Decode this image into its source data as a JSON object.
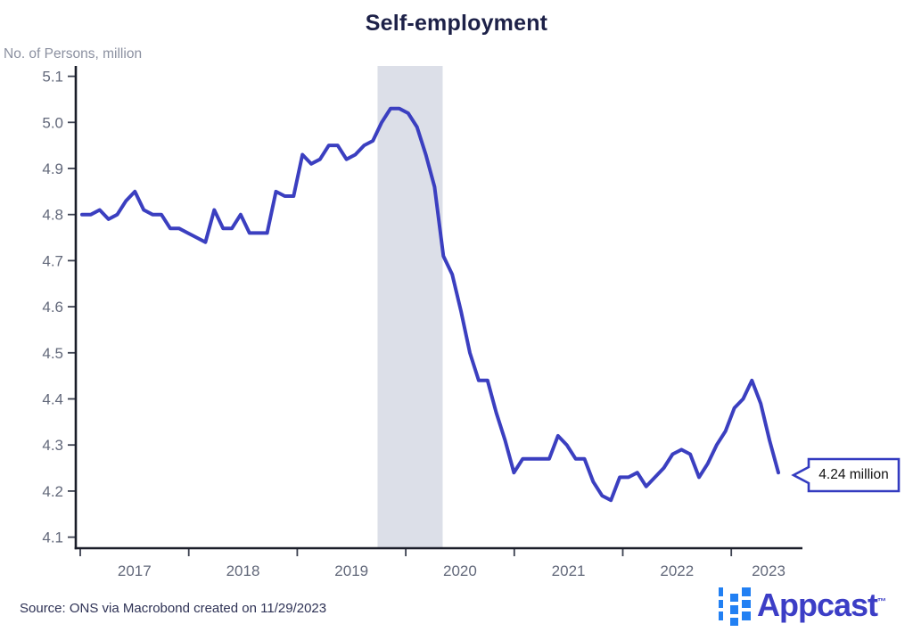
{
  "chart": {
    "title": "Self-employment",
    "ylabel": "No. of Persons, million",
    "callout_label": "4.24 million"
  },
  "footer": {
    "source": "Source: ONS via Macrobond created on 11/29/2023",
    "logo_text": "Appcast",
    "logo_tm": "™"
  },
  "colors": {
    "line": "#3b3fc0",
    "recession_band": "#dcdfe8",
    "axis": "#1a1d29",
    "tick": "#3c4150",
    "tick_label": "#62687a",
    "title": "#1d2148",
    "ylabel": "#8b90a0",
    "source_text": "#2e3255",
    "callout_border": "#333bc0",
    "logo_square_blue": "#2280f3",
    "logo_text_blue": "#3c3ec6"
  },
  "chart_data": {
    "type": "line",
    "title": "Self-employment",
    "ylabel": "No. of Persons, million",
    "unit": "million persons",
    "frequency": "monthly",
    "x_start": "2017-01",
    "x_end": "2023-08",
    "xticks": [
      2017,
      2018,
      2019,
      2020,
      2021,
      2022,
      2023
    ],
    "yticks": [
      5.1,
      5.0,
      4.9,
      4.8,
      4.7,
      4.6,
      4.5,
      4.4,
      4.3,
      4.2,
      4.1
    ],
    "ylim": [
      4.05,
      5.125
    ],
    "grid": false,
    "legend": false,
    "recession_band": {
      "from": 2019.74,
      "to": 2020.34
    },
    "last_value_label": "4.24 million",
    "series": [
      {
        "name": "Self-employment",
        "values": [
          4.8,
          4.8,
          4.81,
          4.79,
          4.8,
          4.83,
          4.85,
          4.81,
          4.8,
          4.8,
          4.77,
          4.77,
          4.76,
          4.75,
          4.74,
          4.81,
          4.77,
          4.77,
          4.8,
          4.76,
          4.76,
          4.76,
          4.85,
          4.84,
          4.84,
          4.93,
          4.91,
          4.92,
          4.95,
          4.95,
          4.92,
          4.93,
          4.95,
          4.96,
          5.0,
          5.03,
          5.03,
          5.02,
          4.99,
          4.93,
          4.86,
          4.71,
          4.67,
          4.59,
          4.5,
          4.44,
          4.44,
          4.37,
          4.31,
          4.24,
          4.27,
          4.27,
          4.27,
          4.27,
          4.32,
          4.3,
          4.27,
          4.27,
          4.22,
          4.19,
          4.18,
          4.23,
          4.23,
          4.24,
          4.21,
          4.23,
          4.25,
          4.28,
          4.29,
          4.28,
          4.23,
          4.26,
          4.3,
          4.33,
          4.38,
          4.4,
          4.44,
          4.39,
          4.31,
          4.24
        ]
      }
    ]
  }
}
